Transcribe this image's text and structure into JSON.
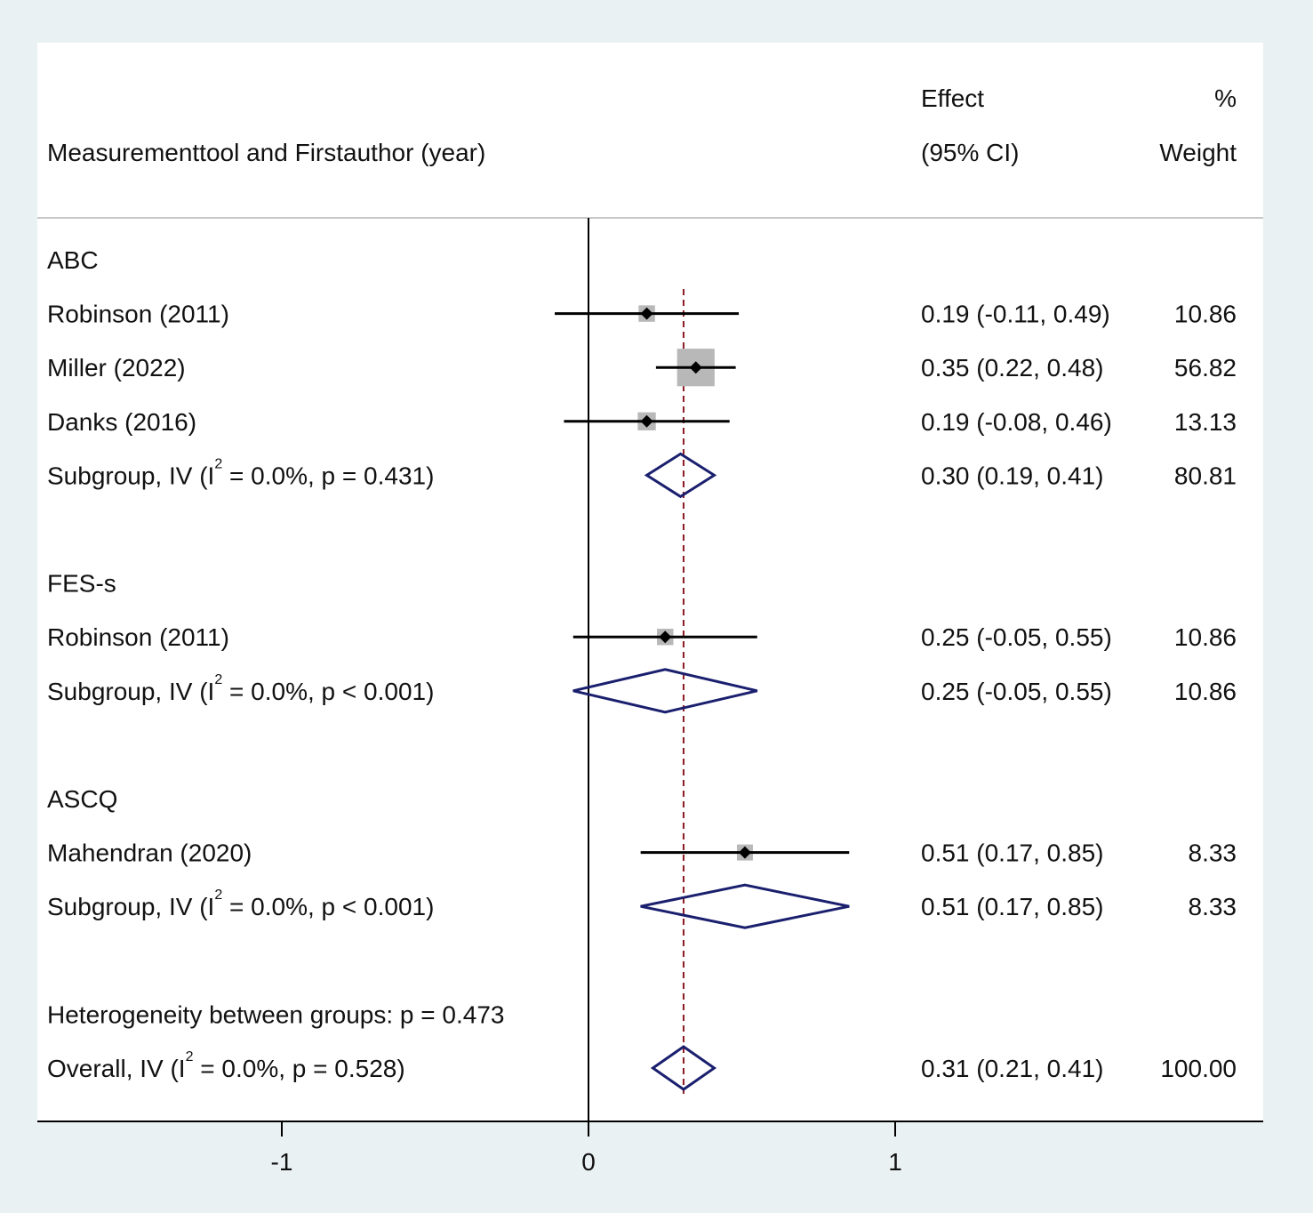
{
  "chart_data": {
    "type": "forest",
    "headers": {
      "study": "Measurementtool and Firstauthor (year)",
      "effect_line1": "Effect",
      "effect_line2": "(95% CI)",
      "weight_line1": "%",
      "weight_line2": "Weight"
    },
    "x_ticks": [
      {
        "value": -1,
        "label": "-1"
      },
      {
        "value": 0,
        "label": "0"
      },
      {
        "value": 1,
        "label": "1"
      }
    ],
    "reference_line": 0,
    "overall_line": 0.31,
    "rows": [
      {
        "kind": "group",
        "label": "ABC"
      },
      {
        "kind": "study",
        "label": "Robinson (2011)",
        "est": 0.19,
        "lo": -0.11,
        "hi": 0.49,
        "ci_text": "0.19 (-0.11, 0.49)",
        "weight": "10.86"
      },
      {
        "kind": "study",
        "label": "Miller (2022)",
        "est": 0.35,
        "lo": 0.22,
        "hi": 0.48,
        "ci_text": "0.35 (0.22, 0.48)",
        "weight": "56.82"
      },
      {
        "kind": "study",
        "label": "Danks (2016)",
        "est": 0.19,
        "lo": -0.08,
        "hi": 0.46,
        "ci_text": "0.19 (-0.08, 0.46)",
        "weight": "13.13"
      },
      {
        "kind": "subtotal",
        "label_prefix": "Subgroup, IV (I",
        "sup": "2",
        "label_suffix": " = 0.0%, p = 0.431)",
        "est": 0.3,
        "lo": 0.19,
        "hi": 0.41,
        "ci_text": "0.30 (0.19, 0.41)",
        "weight": "80.81"
      },
      {
        "kind": "blank"
      },
      {
        "kind": "group",
        "label": "FES-s"
      },
      {
        "kind": "study",
        "label": "Robinson (2011)",
        "est": 0.25,
        "lo": -0.05,
        "hi": 0.55,
        "ci_text": "0.25 (-0.05, 0.55)",
        "weight": "10.86"
      },
      {
        "kind": "subtotal",
        "label_prefix": "Subgroup, IV (I",
        "sup": "2",
        "label_suffix": " = 0.0%, p < 0.001)",
        "est": 0.25,
        "lo": -0.05,
        "hi": 0.55,
        "ci_text": "0.25 (-0.05, 0.55)",
        "weight": "10.86"
      },
      {
        "kind": "blank"
      },
      {
        "kind": "group",
        "label": "ASCQ"
      },
      {
        "kind": "study",
        "label": "Mahendran (2020)",
        "est": 0.51,
        "lo": 0.17,
        "hi": 0.85,
        "ci_text": "0.51 (0.17, 0.85)",
        "weight": "8.33"
      },
      {
        "kind": "subtotal",
        "label_prefix": "Subgroup, IV (I",
        "sup": "2",
        "label_suffix": " = 0.0%, p < 0.001)",
        "est": 0.51,
        "lo": 0.17,
        "hi": 0.85,
        "ci_text": "0.51 (0.17, 0.85)",
        "weight": "8.33"
      },
      {
        "kind": "blank"
      },
      {
        "kind": "note",
        "label": "Heterogeneity between groups: p = 0.473"
      },
      {
        "kind": "overall",
        "label_prefix": "Overall, IV (I",
        "sup": "2",
        "label_suffix": " = 0.0%, p = 0.528)",
        "est": 0.31,
        "lo": 0.21,
        "hi": 0.41,
        "ci_text": "0.31 (0.21, 0.41)",
        "weight": "100.00"
      }
    ]
  },
  "colors": {
    "background": "#eaf1f3",
    "panel": "#ffffff",
    "diamond": "#1a1f6e",
    "marker_box": "#b8b8b8",
    "overall_line": "#8b1c24",
    "axis": "#000000",
    "divider": "#c8c8c8"
  }
}
